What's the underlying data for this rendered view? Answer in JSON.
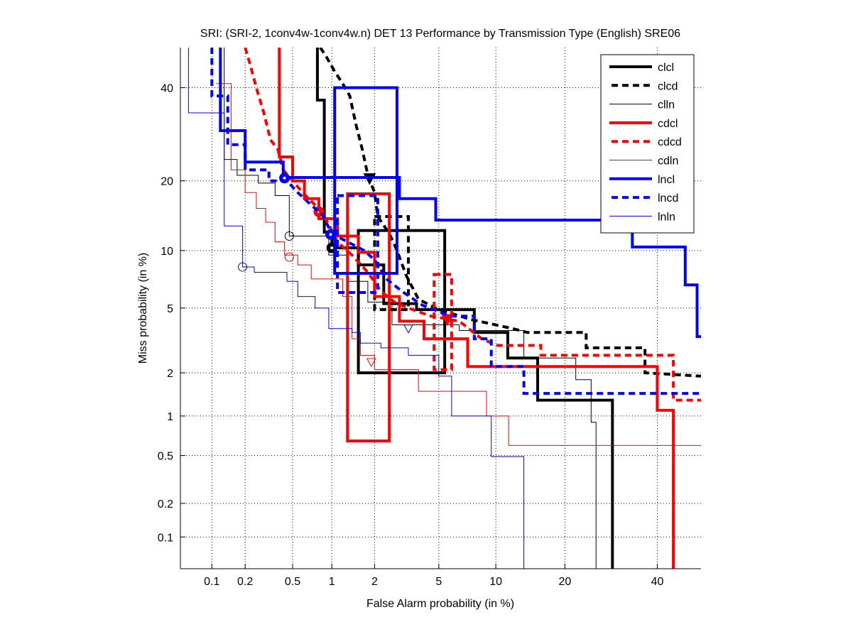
{
  "chart_data": {
    "type": "line",
    "scale": "normal-deviate",
    "title": "SRI: (SRI-2, 1conv4w-1conv4w.n) DET 13 Performance by Transmission Type (English) SRE06",
    "xlabel": "False Alarm probability (in %)",
    "ylabel": "Miss probability (in %)",
    "xlim": [
      0.05,
      51
    ],
    "ylim": [
      0.05,
      50
    ],
    "xticks": [
      "0.1",
      "0.2",
      "0.5",
      "1",
      "2",
      "5",
      "10",
      "20",
      "40"
    ],
    "yticks": [
      "0.1",
      "0.2",
      "0.5",
      "1",
      "2",
      "5",
      "10",
      "20",
      "40"
    ],
    "grid": true,
    "legend_position": "top-right",
    "series": [
      {
        "name": "clcl",
        "color": "#000000",
        "style": "solid",
        "width": 4,
        "points": [
          [
            0.78,
            50
          ],
          [
            0.78,
            37
          ],
          [
            0.88,
            37
          ],
          [
            0.88,
            12.2
          ],
          [
            1.0,
            12.2
          ],
          [
            1.0,
            10.3
          ],
          [
            1.55,
            10.3
          ],
          [
            1.55,
            8.5
          ],
          [
            2.3,
            8.5
          ],
          [
            2.3,
            5.3
          ],
          [
            3.7,
            5.3
          ],
          [
            3.7,
            4.9
          ],
          [
            7.8,
            4.9
          ],
          [
            7.8,
            3.6
          ],
          [
            11.4,
            3.6
          ],
          [
            11.4,
            2.5
          ],
          [
            15.5,
            2.5
          ],
          [
            15.5,
            1.3
          ],
          [
            29.5,
            1.3
          ],
          [
            29.5,
            0.05
          ]
        ],
        "marker": {
          "fa": 1.0,
          "miss": 10.3,
          "shape": "circle"
        },
        "ci": [
          [
            1.55,
            2.0
          ],
          [
            5.4,
            12.4
          ]
        ]
      },
      {
        "name": "clcd",
        "color": "#000000",
        "style": "dashed",
        "width": 4,
        "points": [
          [
            0.82,
            50
          ],
          [
            0.9,
            48
          ],
          [
            1.05,
            44
          ],
          [
            1.2,
            41
          ],
          [
            1.35,
            38
          ],
          [
            1.5,
            31
          ],
          [
            1.65,
            26
          ],
          [
            1.8,
            21
          ],
          [
            2.0,
            18
          ],
          [
            2.1,
            14.3
          ],
          [
            2.5,
            12
          ],
          [
            2.8,
            10
          ],
          [
            3.2,
            7.5
          ],
          [
            3.8,
            5.6
          ],
          [
            5.0,
            4.9
          ],
          [
            7.5,
            4.3
          ],
          [
            12,
            3.8
          ],
          [
            14,
            3.6
          ],
          [
            24,
            3.6
          ],
          [
            24,
            2.9
          ],
          [
            37,
            2.9
          ],
          [
            37,
            2.0
          ],
          [
            51,
            1.9
          ]
        ],
        "marker": {
          "fa": 1.85,
          "miss": 20.4,
          "shape": "triangle-down"
        },
        "ci": [
          [
            2.0,
            14.3
          ],
          [
            3.3,
            4.9
          ]
        ]
      },
      {
        "name": "clln",
        "color": "#000000",
        "style": "solid",
        "width": 1,
        "points": [
          [
            0.13,
            50
          ],
          [
            0.13,
            24
          ],
          [
            0.17,
            24
          ],
          [
            0.17,
            21
          ],
          [
            0.26,
            21
          ],
          [
            0.26,
            19.6
          ],
          [
            0.36,
            19.6
          ],
          [
            0.36,
            17.5
          ],
          [
            0.47,
            17.5
          ],
          [
            0.47,
            11.7
          ],
          [
            0.95,
            11.7
          ],
          [
            0.95,
            9.5
          ],
          [
            1.3,
            9.5
          ],
          [
            1.3,
            7.0
          ],
          [
            1.8,
            7.0
          ],
          [
            1.8,
            5.4
          ],
          [
            2.6,
            5.4
          ],
          [
            2.6,
            4.0
          ],
          [
            6.5,
            4.0
          ],
          [
            6.5,
            3.7
          ],
          [
            13.5,
            3.7
          ],
          [
            13.5,
            2.5
          ],
          [
            22,
            2.5
          ],
          [
            22,
            1.8
          ],
          [
            25,
            1.8
          ],
          [
            25,
            0.9
          ],
          [
            26,
            0.9
          ],
          [
            26,
            0.05
          ]
        ],
        "marker": {
          "fa": 0.47,
          "miss": 11.7,
          "shape": "circle"
        }
      },
      {
        "name": "cdcl",
        "color": "#ff0000",
        "style": "solid",
        "width": 4,
        "points": [
          [
            0.39,
            50
          ],
          [
            0.39,
            24.5
          ],
          [
            0.5,
            24.5
          ],
          [
            0.5,
            20
          ],
          [
            0.62,
            20
          ],
          [
            0.62,
            17
          ],
          [
            0.8,
            17
          ],
          [
            0.8,
            14
          ],
          [
            1.1,
            14
          ],
          [
            1.1,
            11.7
          ],
          [
            1.55,
            11.7
          ],
          [
            1.55,
            9.8
          ],
          [
            2.0,
            9.8
          ],
          [
            2.0,
            5.8
          ],
          [
            2.9,
            5.8
          ],
          [
            2.9,
            4.2
          ],
          [
            4.1,
            4.2
          ],
          [
            4.1,
            3.3
          ],
          [
            7.2,
            3.3
          ],
          [
            7.2,
            2.2
          ],
          [
            40,
            2.2
          ],
          [
            40,
            1.1
          ],
          [
            44,
            1.1
          ],
          [
            44,
            0.05
          ]
        ],
        "marker": {
          "fa": 0.8,
          "miss": 15,
          "shape": "circle"
        },
        "ci": [
          [
            1.3,
            0.65
          ],
          [
            2.5,
            17.8
          ]
        ]
      },
      {
        "name": "cdcd",
        "color": "#ff0000",
        "style": "dashed",
        "width": 4,
        "points": [
          [
            0.2,
            50
          ],
          [
            0.22,
            46
          ],
          [
            0.25,
            40
          ],
          [
            0.29,
            34
          ],
          [
            0.33,
            28
          ],
          [
            0.38,
            26
          ],
          [
            0.42,
            22
          ],
          [
            0.5,
            20
          ],
          [
            0.6,
            18
          ],
          [
            0.75,
            16
          ],
          [
            0.9,
            14
          ],
          [
            1.1,
            11
          ],
          [
            1.4,
            9.5
          ],
          [
            1.8,
            7.8
          ],
          [
            2.2,
            6.2
          ],
          [
            2.7,
            5.4
          ],
          [
            3.3,
            5.0
          ],
          [
            4.5,
            4.5
          ],
          [
            6.5,
            4.2
          ],
          [
            8.5,
            3.3
          ],
          [
            10.2,
            3.0
          ],
          [
            16,
            3.0
          ],
          [
            16,
            2.6
          ],
          [
            44,
            2.6
          ],
          [
            44,
            1.3
          ],
          [
            51,
            1.3
          ]
        ],
        "marker": {
          "fa": 5.6,
          "miss": 4.3,
          "shape": "triangle-down"
        },
        "ci": [
          [
            4.7,
            2.1
          ],
          [
            5.9,
            7.6
          ]
        ]
      },
      {
        "name": "cdln",
        "color": "#ff0000",
        "style": "solid",
        "width": 1,
        "points": [
          [
            0.11,
            41
          ],
          [
            0.15,
            41
          ],
          [
            0.15,
            22
          ],
          [
            0.2,
            22
          ],
          [
            0.2,
            18
          ],
          [
            0.25,
            18
          ],
          [
            0.25,
            15.5
          ],
          [
            0.3,
            15.5
          ],
          [
            0.3,
            13.5
          ],
          [
            0.36,
            13.5
          ],
          [
            0.36,
            11.0
          ],
          [
            0.43,
            11.0
          ],
          [
            0.43,
            9.5
          ],
          [
            0.55,
            9.5
          ],
          [
            0.55,
            8.5
          ],
          [
            0.7,
            8.5
          ],
          [
            0.7,
            7.2
          ],
          [
            1.2,
            7.2
          ],
          [
            1.2,
            5.8
          ],
          [
            1.4,
            5.8
          ],
          [
            1.4,
            3.3
          ],
          [
            1.6,
            3.3
          ],
          [
            1.6,
            2.6
          ],
          [
            2.0,
            2.6
          ],
          [
            2.0,
            2.1
          ],
          [
            3.8,
            2.1
          ],
          [
            3.8,
            1.5
          ],
          [
            9.0,
            1.5
          ],
          [
            9.0,
            1.0
          ],
          [
            11.5,
            1.0
          ],
          [
            11.5,
            0.6
          ],
          [
            51,
            0.6
          ]
        ],
        "marker": {
          "fa": 0.47,
          "miss": 9.3,
          "shape": "circle"
        }
      },
      {
        "name": "lncl",
        "color": "#0000ff",
        "style": "solid",
        "width": 4,
        "points": [
          [
            0.12,
            50
          ],
          [
            0.12,
            30
          ],
          [
            0.2,
            30
          ],
          [
            0.2,
            23.5
          ],
          [
            0.42,
            23.5
          ],
          [
            0.42,
            20.6
          ],
          [
            2.9,
            20.6
          ],
          [
            2.9,
            17
          ],
          [
            4.8,
            17
          ],
          [
            4.8,
            13.8
          ],
          [
            34,
            13.8
          ],
          [
            34,
            10.4
          ],
          [
            47,
            10.4
          ],
          [
            47,
            6.7
          ],
          [
            50,
            6.7
          ],
          [
            50,
            3.4
          ],
          [
            51,
            3.4
          ]
        ],
        "marker": {
          "fa": 0.43,
          "miss": 20.5,
          "shape": "circle"
        },
        "ci": [
          [
            1.05,
            7.7
          ],
          [
            2.8,
            40
          ]
        ]
      },
      {
        "name": "lncd",
        "color": "#0000ff",
        "style": "dashed",
        "width": 4,
        "points": [
          [
            0.1,
            50
          ],
          [
            0.1,
            38
          ],
          [
            0.14,
            38
          ],
          [
            0.14,
            27
          ],
          [
            0.2,
            27
          ],
          [
            0.2,
            22
          ],
          [
            0.32,
            22
          ],
          [
            0.32,
            20
          ],
          [
            0.45,
            20
          ],
          [
            0.55,
            18
          ],
          [
            0.7,
            16
          ],
          [
            0.85,
            14.6
          ],
          [
            1.0,
            12
          ],
          [
            1.3,
            11
          ],
          [
            1.7,
            10
          ],
          [
            2.0,
            9
          ],
          [
            2.4,
            7.2
          ],
          [
            3.0,
            6.2
          ],
          [
            4.0,
            5.2
          ],
          [
            5.8,
            4.5
          ],
          [
            7.8,
            4.5
          ],
          [
            7.8,
            3.3
          ],
          [
            9.5,
            3.3
          ],
          [
            9.5,
            2.2
          ],
          [
            13.5,
            2.2
          ],
          [
            13.5,
            1.45
          ],
          [
            51,
            1.45
          ]
        ],
        "marker": {
          "fa": 0.98,
          "miss": 11.9,
          "shape": "circle"
        },
        "ci": [
          [
            1.1,
            6.1
          ],
          [
            2.1,
            17.5
          ]
        ]
      },
      {
        "name": "lnln",
        "color": "#0000ff",
        "style": "solid",
        "width": 1,
        "points": [
          [
            0.06,
            50
          ],
          [
            0.06,
            34
          ],
          [
            0.13,
            34
          ],
          [
            0.13,
            13
          ],
          [
            0.19,
            13
          ],
          [
            0.19,
            8.3
          ],
          [
            0.24,
            8.3
          ],
          [
            0.24,
            7.8
          ],
          [
            0.45,
            7.8
          ],
          [
            0.45,
            7.0
          ],
          [
            0.55,
            7.0
          ],
          [
            0.55,
            5.8
          ],
          [
            0.75,
            5.8
          ],
          [
            0.75,
            5.0
          ],
          [
            0.95,
            5.0
          ],
          [
            0.95,
            3.8
          ],
          [
            1.4,
            3.8
          ],
          [
            1.4,
            3.6
          ],
          [
            1.6,
            3.6
          ],
          [
            1.6,
            3.1
          ],
          [
            2.2,
            3.1
          ],
          [
            2.2,
            2.9
          ],
          [
            3.3,
            2.9
          ],
          [
            3.3,
            2.6
          ],
          [
            5.0,
            2.6
          ],
          [
            5.0,
            1.9
          ],
          [
            5.9,
            1.9
          ],
          [
            5.9,
            1.0
          ],
          [
            9.5,
            1.0
          ],
          [
            9.5,
            0.49
          ],
          [
            13.5,
            0.49
          ],
          [
            13.5,
            0.05
          ]
        ],
        "marker": {
          "fa": 0.19,
          "miss": 8.3,
          "shape": "circle"
        }
      }
    ]
  }
}
